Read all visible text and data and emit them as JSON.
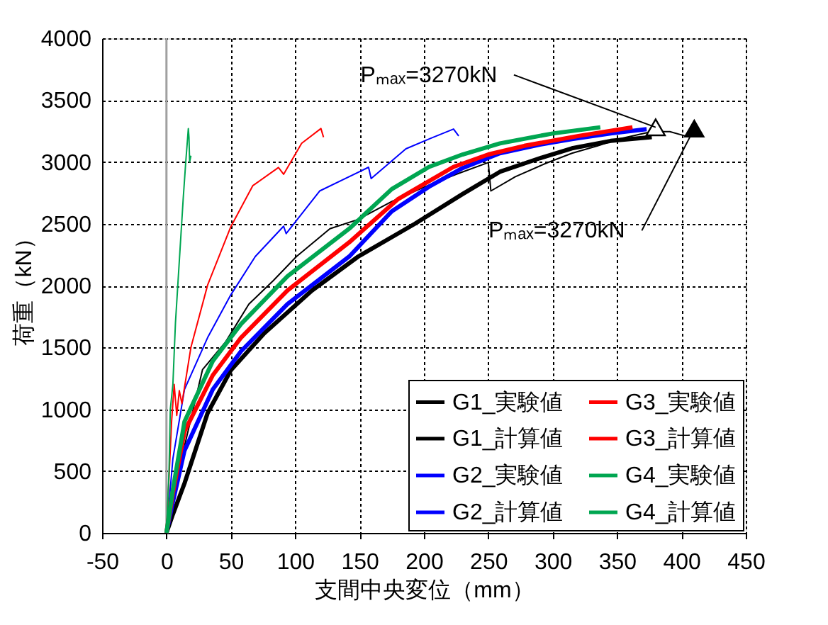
{
  "chart_data": {
    "type": "line",
    "xlabel": "支間中央変位（mm）",
    "ylabel": "荷重（kN）",
    "xlim": [
      -50,
      450
    ],
    "xticks": [
      -50,
      0,
      50,
      100,
      150,
      200,
      250,
      300,
      350,
      400,
      450
    ],
    "ylim": [
      0,
      4000
    ],
    "yticks": [
      0,
      500,
      1000,
      1500,
      2000,
      2500,
      3000,
      3500,
      4000
    ],
    "grid": true,
    "legend": "bottom right",
    "line_style": "solid",
    "ref_lines": [
      {
        "axis": "x",
        "value": 0,
        "color": "#a0a0a0"
      }
    ],
    "annotations": [
      {
        "text": "Pₘₐₓ=3270kN",
        "x": 380,
        "y": 3280
      },
      {
        "text": "Pₘₐₓ=3270kN",
        "x": 410,
        "y": 3270
      }
    ],
    "series": [
      {
        "name": "G1_実験値",
        "color": "#000000",
        "x": [
          0,
          3,
          14,
          28,
          46,
          64,
          83,
          101,
          127,
          149,
          175,
          201,
          225,
          250,
          252,
          271,
          295,
          315,
          335,
          351,
          377,
          391,
          403,
          410
        ],
        "values": [
          0,
          120,
          700,
          1320,
          1545,
          1850,
          2040,
          2235,
          2460,
          2535,
          2680,
          2800,
          2900,
          2995,
          2765,
          2880,
          2990,
          3070,
          3130,
          3185,
          3245,
          3245,
          3210,
          3270
        ]
      },
      {
        "name": "G1_計算値",
        "color": "#000000",
        "x": [
          0,
          5,
          14,
          32,
          50,
          76,
          113,
          149,
          193,
          230,
          259,
          290,
          315,
          345,
          377
        ],
        "values": [
          0,
          150,
          400,
          970,
          1315,
          1615,
          1960,
          2235,
          2500,
          2740,
          2920,
          3030,
          3110,
          3170,
          3200
        ]
      },
      {
        "name": "G2_実験値",
        "color": "#0000ff",
        "x": [
          0,
          5,
          14,
          32,
          50,
          69,
          91,
          93,
          119,
          157,
          159,
          186,
          205,
          223,
          227
        ],
        "values": [
          0,
          600,
          1160,
          1580,
          1925,
          2235,
          2480,
          2420,
          2765,
          2957,
          2865,
          3106,
          3190,
          3266,
          3210
        ]
      },
      {
        "name": "G2_計算値",
        "color": "#0000ff",
        "x": [
          0,
          5,
          14,
          36,
          58,
          94,
          142,
          175,
          204,
          230,
          259,
          290,
          315,
          345,
          373
        ],
        "values": [
          0,
          250,
          665,
          1160,
          1470,
          1850,
          2235,
          2600,
          2800,
          2950,
          3070,
          3140,
          3185,
          3230,
          3265
        ]
      },
      {
        "name": "G3_実験値",
        "color": "#ff0000",
        "x": [
          0,
          4,
          6,
          8,
          10,
          12,
          19,
          32,
          50,
          67,
          87,
          91,
          105,
          120,
          122
        ],
        "values": [
          0,
          900,
          1200,
          950,
          1150,
          1045,
          1500,
          2005,
          2476,
          2807,
          2955,
          2900,
          3150,
          3270,
          3200
        ]
      },
      {
        "name": "G3_計算値",
        "color": "#ff0000",
        "x": [
          0,
          5,
          14,
          36,
          58,
          94,
          142,
          180,
          223,
          250,
          278,
          320,
          362
        ],
        "values": [
          0,
          320,
          820,
          1275,
          1580,
          1960,
          2350,
          2700,
          2960,
          3060,
          3130,
          3210,
          3280
        ]
      },
      {
        "name": "G4_実験値",
        "color": "#00a651",
        "x": [
          0,
          2,
          3,
          5,
          7,
          10,
          13,
          15,
          17,
          17.5,
          18,
          19
        ],
        "values": [
          0,
          500,
          1000,
          1200,
          1700,
          2200,
          2700,
          3000,
          3270,
          3200,
          3000,
          3050
        ]
      },
      {
        "name": "G4_計算値",
        "color": "#00a651",
        "x": [
          0,
          5,
          14,
          36,
          58,
          94,
          142,
          175,
          204,
          230,
          259,
          300,
          337
        ],
        "values": [
          0,
          350,
          900,
          1390,
          1690,
          2075,
          2460,
          2780,
          2960,
          3060,
          3150,
          3230,
          3280
        ]
      },
      {
        "type": "scatter",
        "marker": "triangle",
        "color": "#ffffff",
        "x": [
          380
        ],
        "values": [
          3280
        ]
      },
      {
        "type": "scatter",
        "marker": "triangle",
        "color": "#000000",
        "x": [
          410
        ],
        "values": [
          3270
        ]
      }
    ]
  }
}
